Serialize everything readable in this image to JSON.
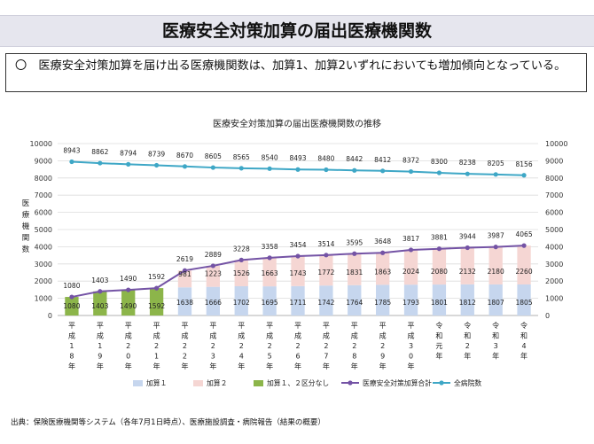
{
  "page": {
    "title": "医療安全対策加算の届出医療機関数",
    "summary": "〇　医療安全対策加算を届け出る医療機関数は、加算1、加算2いずれにおいても増加傾向となっている。",
    "source": "出典：保険医療機関等システム（各年7月1日時点）、医療施設調査・病院報告（結果の概要）"
  },
  "chart_data": {
    "type": "bar",
    "title": "医療安全対策加算の届出医療機関数の推移",
    "ylabel": "医療機関数",
    "ylim": [
      0,
      10000
    ],
    "y_ticks": [
      "10000",
      "9000",
      "8000",
      "7000",
      "6000",
      "5000",
      "4000",
      "3000",
      "2000",
      "1000",
      "0"
    ],
    "y2_ticks": [
      "10000",
      "9000",
      "8000",
      "7000",
      "6000",
      "5000",
      "4000",
      "3000",
      "2000",
      "1000",
      "0"
    ],
    "categories": [
      "平成18年",
      "平成19年",
      "平成20年",
      "平成21年",
      "平成22年",
      "平成23年",
      "平成24年",
      "平成25年",
      "平成26年",
      "平成27年",
      "平成28年",
      "平成29年",
      "平成30年",
      "令和元年",
      "令和2年",
      "令和3年",
      "令和4年"
    ],
    "category_chars": [
      [
        "平",
        "成",
        "1",
        "8",
        "年"
      ],
      [
        "平",
        "成",
        "1",
        "9",
        "年"
      ],
      [
        "平",
        "成",
        "2",
        "0",
        "年"
      ],
      [
        "平",
        "成",
        "2",
        "1",
        "年"
      ],
      [
        "平",
        "成",
        "2",
        "2",
        "年"
      ],
      [
        "平",
        "成",
        "2",
        "3",
        "年"
      ],
      [
        "平",
        "成",
        "2",
        "4",
        "年"
      ],
      [
        "平",
        "成",
        "2",
        "5",
        "年"
      ],
      [
        "平",
        "成",
        "2",
        "6",
        "年"
      ],
      [
        "平",
        "成",
        "2",
        "7",
        "年"
      ],
      [
        "平",
        "成",
        "2",
        "8",
        "年"
      ],
      [
        "平",
        "成",
        "2",
        "9",
        "年"
      ],
      [
        "平",
        "成",
        "3",
        "0",
        "年"
      ],
      [
        "令",
        "和",
        "元",
        "年"
      ],
      [
        "令",
        "和",
        "2",
        "年"
      ],
      [
        "令",
        "和",
        "3",
        "年"
      ],
      [
        "令",
        "和",
        "4",
        "年"
      ]
    ],
    "series": [
      {
        "name": "加算１",
        "kind": "bar",
        "color": "#c6d6ee",
        "values": [
          null,
          null,
          null,
          null,
          1638,
          1666,
          1702,
          1695,
          1711,
          1742,
          1764,
          1785,
          1793,
          1801,
          1812,
          1807,
          1805
        ]
      },
      {
        "name": "加算２",
        "kind": "bar",
        "color": "#f5d6d3",
        "values": [
          null,
          null,
          null,
          null,
          981,
          1223,
          1526,
          1663,
          1743,
          1772,
          1831,
          1863,
          2024,
          2080,
          2132,
          2180,
          2260
        ]
      },
      {
        "name": "加算１、２区分なし",
        "kind": "bar",
        "color": "#8cb54a",
        "values": [
          1080,
          1403,
          1490,
          1592,
          null,
          null,
          null,
          null,
          null,
          null,
          null,
          null,
          null,
          null,
          null,
          null,
          null
        ]
      },
      {
        "name": "医療安全対策加算合計",
        "kind": "line",
        "color": "#7453a5",
        "values": [
          1080,
          1403,
          1490,
          1592,
          2619,
          2889,
          3228,
          3358,
          3454,
          3514,
          3595,
          3648,
          3817,
          3881,
          3944,
          3987,
          4065
        ]
      },
      {
        "name": "全病院数",
        "kind": "line",
        "color": "#3ea7c6",
        "values": [
          8943,
          8862,
          8794,
          8739,
          8670,
          8605,
          8565,
          8540,
          8493,
          8480,
          8442,
          8412,
          8372,
          8300,
          8238,
          8205,
          8156
        ]
      }
    ]
  }
}
